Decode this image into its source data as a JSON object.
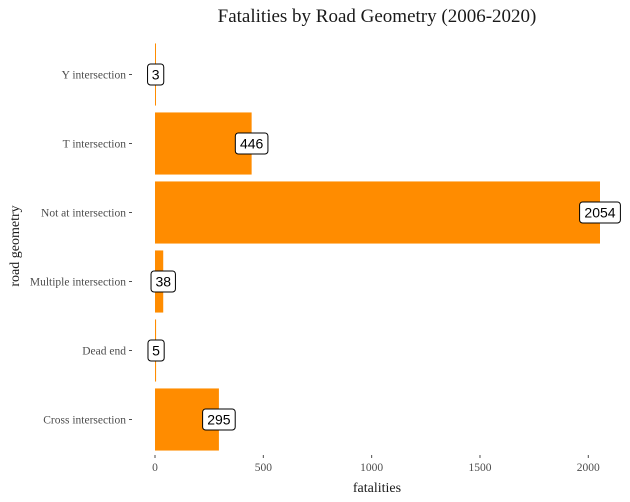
{
  "chart_data": {
    "type": "bar",
    "orientation": "horizontal",
    "title": "Fatalities by Road Geometry (2006-2020)",
    "xlabel": "fatalities",
    "ylabel": "road geometry",
    "categories": [
      "Cross intersection",
      "Dead end",
      "Multiple intersection",
      "Not at intersection",
      "T intersection",
      "Y intersection"
    ],
    "values": [
      295,
      5,
      38,
      2054,
      446,
      3
    ],
    "x_ticks": [
      0,
      500,
      1000,
      1500,
      2000
    ],
    "xlim": [
      0,
      2054
    ],
    "bar_color": "#FF8C00",
    "data_labels": true,
    "grid": false,
    "legend": "none"
  }
}
